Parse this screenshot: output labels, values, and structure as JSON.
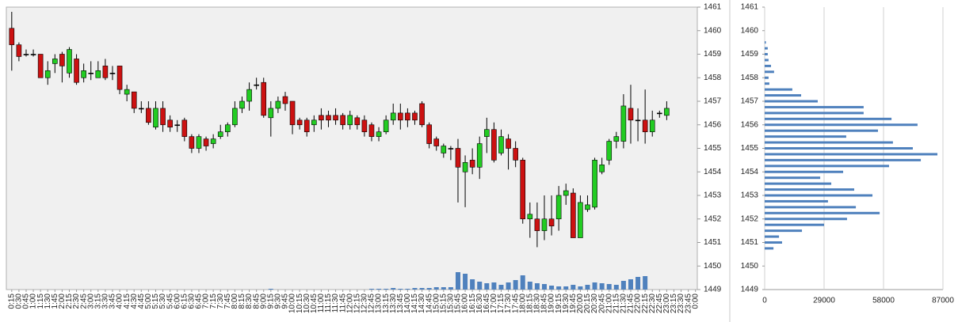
{
  "chart_data": [
    {
      "type": "candlestick",
      "categories": [
        "0:15",
        "0:30",
        "0:45",
        "1:00",
        "1:15",
        "1:30",
        "1:45",
        "2:00",
        "2:15",
        "2:30",
        "2:45",
        "3:00",
        "3:15",
        "3:30",
        "3:45",
        "4:00",
        "4:15",
        "4:30",
        "4:45",
        "5:00",
        "5:15",
        "5:30",
        "5:45",
        "6:00",
        "6:15",
        "6:30",
        "6:45",
        "7:00",
        "7:15",
        "7:30",
        "7:45",
        "8:00",
        "8:15",
        "8:30",
        "8:45",
        "9:00",
        "9:15",
        "9:30",
        "9:45",
        "10:00",
        "10:15",
        "10:30",
        "10:45",
        "11:00",
        "11:15",
        "11:30",
        "11:45",
        "12:00",
        "12:15",
        "12:30",
        "12:45",
        "13:00",
        "13:15",
        "13:30",
        "13:45",
        "14:00",
        "14:15",
        "14:30",
        "14:45",
        "15:00",
        "15:15",
        "15:30",
        "15:45",
        "16:00",
        "16:15",
        "16:30",
        "16:45",
        "17:00",
        "17:15",
        "17:30",
        "17:45",
        "18:00",
        "18:15",
        "18:30",
        "18:45",
        "19:00",
        "19:15",
        "19:30",
        "19:45",
        "20:00",
        "20:15",
        "20:30",
        "20:45",
        "21:00",
        "21:15",
        "21:30",
        "21:45",
        "22:00",
        "22:15",
        "22:30",
        "22:45",
        "23:00",
        "23:15",
        "23:30",
        "23:45",
        "0:00"
      ],
      "open": [
        1460.1,
        1459.4,
        1459.0,
        1459.0,
        1459.0,
        1458.0,
        1458.6,
        1459.0,
        1458.2,
        1458.8,
        1458.0,
        1458.2,
        1458.0,
        1458.5,
        1458.2,
        1458.5,
        1457.3,
        1457.4,
        1456.7,
        1456.7,
        1455.9,
        1456.7,
        1456.2,
        1456.0,
        1456.2,
        1455.5,
        1455.0,
        1455.4,
        1455.2,
        1455.5,
        1455.7,
        1456.0,
        1456.7,
        1457.0,
        1457.7,
        1457.8,
        1456.3,
        1456.7,
        1457.2,
        1457.0,
        1456.2,
        1456.2,
        1456.0,
        1456.4,
        1456.4,
        1456.4,
        1456.4,
        1456.0,
        1456.3,
        1456.2,
        1456.0,
        1455.5,
        1455.7,
        1456.2,
        1456.5,
        1456.5,
        1456.5,
        1456.9,
        1456.0,
        1455.4,
        1454.8,
        1455.0,
        1455.0,
        1454.0,
        1454.5,
        1454.2,
        1455.5,
        1455.8,
        1454.8,
        1455.4,
        1455.0,
        1454.5,
        1452.0,
        1452.0,
        1451.5,
        1452.0,
        1452.0,
        1453.0,
        1453.1,
        1451.2,
        1452.4,
        1452.5,
        1454.0,
        1454.5,
        1455.3,
        1455.3,
        1456.7,
        1456.2,
        1456.2,
        1455.7,
        1456.5,
        1456.4,
        null,
        null,
        null,
        null
      ],
      "high": [
        1460.8,
        1459.5,
        1459.2,
        1459.2,
        1459.0,
        1458.7,
        1459.0,
        1459.1,
        1459.3,
        1459.0,
        1458.6,
        1458.7,
        1458.7,
        1458.8,
        1458.5,
        1458.5,
        1457.7,
        1457.4,
        1457.0,
        1457.0,
        1457.0,
        1457.0,
        1456.4,
        1456.2,
        1456.3,
        1455.6,
        1455.6,
        1455.5,
        1455.6,
        1456.0,
        1456.1,
        1457.0,
        1457.2,
        1457.8,
        1458.0,
        1458.0,
        1457.0,
        1457.2,
        1457.4,
        1457.0,
        1456.3,
        1456.3,
        1456.4,
        1456.7,
        1456.6,
        1456.7,
        1456.5,
        1456.6,
        1456.4,
        1456.4,
        1456.1,
        1455.9,
        1456.4,
        1456.9,
        1456.9,
        1456.7,
        1456.6,
        1457.0,
        1456.1,
        1455.5,
        1455.2,
        1455.1,
        1455.4,
        1454.7,
        1455.0,
        1455.5,
        1456.3,
        1456.1,
        1455.8,
        1455.6,
        1455.3,
        1454.6,
        1452.7,
        1452.7,
        1453.0,
        1453.0,
        1453.4,
        1453.5,
        1453.3,
        1453.0,
        1453.0,
        1454.6,
        1454.6,
        1455.4,
        1455.7,
        1457.3,
        1457.7,
        1456.7,
        1457.5,
        1456.6,
        1456.6,
        1457.0,
        null,
        null,
        null,
        null
      ],
      "low": [
        1458.3,
        1458.7,
        1458.9,
        1458.9,
        1458.0,
        1457.7,
        1458.2,
        1457.8,
        1458.0,
        1457.7,
        1457.8,
        1457.9,
        1458.0,
        1457.9,
        1457.9,
        1457.3,
        1457.0,
        1456.5,
        1456.5,
        1456.0,
        1455.8,
        1455.7,
        1455.7,
        1455.7,
        1455.3,
        1454.8,
        1454.8,
        1454.9,
        1455.0,
        1455.4,
        1455.5,
        1455.9,
        1456.5,
        1456.6,
        1457.5,
        1456.3,
        1455.5,
        1456.5,
        1456.6,
        1455.6,
        1455.8,
        1455.5,
        1455.7,
        1455.8,
        1455.9,
        1456.0,
        1455.8,
        1455.8,
        1455.8,
        1455.5,
        1455.3,
        1455.3,
        1455.6,
        1456.0,
        1455.8,
        1455.9,
        1456.0,
        1455.9,
        1455.0,
        1454.9,
        1454.6,
        1454.5,
        1452.7,
        1452.5,
        1453.9,
        1453.7,
        1454.8,
        1454.4,
        1454.7,
        1454.1,
        1454.2,
        1451.8,
        1451.2,
        1450.8,
        1451.1,
        1451.3,
        1451.5,
        1452.6,
        1451.2,
        1451.2,
        1452.3,
        1452.4,
        1453.9,
        1454.3,
        1455.0,
        1455.0,
        1455.2,
        1455.3,
        1455.2,
        1455.5,
        1456.3,
        1456.2,
        null,
        null,
        null,
        null
      ],
      "close": [
        1459.4,
        1458.9,
        1459.0,
        1459.0,
        1458.0,
        1458.3,
        1458.8,
        1458.5,
        1459.2,
        1457.8,
        1458.3,
        1458.2,
        1458.3,
        1458.0,
        1458.2,
        1457.5,
        1457.5,
        1456.7,
        1456.7,
        1456.1,
        1456.7,
        1456.0,
        1455.9,
        1456.0,
        1455.5,
        1455.0,
        1455.5,
        1455.1,
        1455.4,
        1455.7,
        1456.0,
        1456.7,
        1457.0,
        1457.5,
        1457.7,
        1456.4,
        1456.7,
        1457.0,
        1456.9,
        1456.0,
        1456.0,
        1455.7,
        1456.2,
        1456.2,
        1456.2,
        1456.2,
        1456.0,
        1456.4,
        1456.0,
        1455.7,
        1455.5,
        1455.7,
        1456.2,
        1456.5,
        1456.2,
        1456.2,
        1456.2,
        1456.0,
        1455.2,
        1455.1,
        1455.1,
        1455.0,
        1454.2,
        1454.4,
        1454.2,
        1455.2,
        1455.8,
        1454.5,
        1455.5,
        1455.0,
        1454.5,
        1452.0,
        1452.2,
        1451.5,
        1452.0,
        1451.7,
        1453.0,
        1453.2,
        1451.2,
        1452.7,
        1452.6,
        1454.5,
        1454.3,
        1455.3,
        1455.5,
        1456.8,
        1456.2,
        1456.2,
        1455.7,
        1456.2,
        1456.5,
        1456.7,
        null,
        null,
        null,
        null
      ],
      "volume": [
        0,
        0,
        0,
        0,
        0,
        0,
        0,
        0,
        0,
        0,
        0,
        0,
        0,
        0,
        0,
        0,
        0,
        0,
        0,
        0,
        0,
        0,
        0,
        0,
        0,
        0,
        0,
        0,
        0,
        0,
        0,
        0,
        0,
        0,
        0,
        0,
        1,
        0,
        0,
        0,
        0,
        0,
        0,
        0,
        0,
        0,
        0,
        0,
        0,
        0,
        1,
        1,
        1,
        2,
        1,
        1,
        2,
        2,
        2,
        3,
        3,
        3,
        22,
        20,
        13,
        10,
        8,
        9,
        6,
        9,
        12,
        18,
        10,
        8,
        7,
        5,
        4,
        4,
        6,
        4,
        6,
        9,
        8,
        7,
        6,
        11,
        13,
        16,
        17,
        0,
        0,
        0,
        null,
        null,
        null,
        null
      ],
      "up_color": "#22cc22",
      "down_color": "#cc1111",
      "volume_color": "#4f81bd",
      "ylim": [
        1449,
        1461
      ],
      "yticks": [
        1449,
        1450,
        1451,
        1452,
        1453,
        1454,
        1455,
        1456,
        1457,
        1458,
        1459,
        1460,
        1461
      ]
    },
    {
      "type": "bar",
      "orientation": "horizontal",
      "color": "#4f81bd",
      "y": [
        1459.5,
        1459.25,
        1459,
        1458.75,
        1458.5,
        1458.25,
        1458,
        1457.75,
        1457.5,
        1457.25,
        1457,
        1456.75,
        1456.5,
        1456.25,
        1456,
        1455.75,
        1455.5,
        1455.25,
        1455,
        1454.75,
        1454.5,
        1454.25,
        1454,
        1453.75,
        1453.5,
        1453.25,
        1453,
        1452.75,
        1452.5,
        1452.25,
        1452,
        1451.75,
        1451.5,
        1451.25,
        1451,
        1450.75
      ],
      "values": [
        600,
        1500,
        1500,
        1900,
        3100,
        4600,
        1900,
        2300,
        13500,
        17800,
        25900,
        48300,
        48300,
        61900,
        74600,
        55300,
        39800,
        62600,
        72300,
        84300,
        76200,
        60700,
        38300,
        27100,
        32500,
        43700,
        52600,
        30900,
        44500,
        56100,
        40200,
        29000,
        18200,
        7000,
        8500,
        4300
      ],
      "xlim": [
        0,
        87000
      ],
      "xticks": [
        0,
        29000,
        58000,
        87000
      ],
      "grid": true,
      "ylim": [
        1449,
        1461
      ],
      "yticks": [
        1449,
        1450,
        1451,
        1452,
        1453,
        1454,
        1455,
        1456,
        1457,
        1458,
        1459,
        1460,
        1461
      ]
    }
  ]
}
